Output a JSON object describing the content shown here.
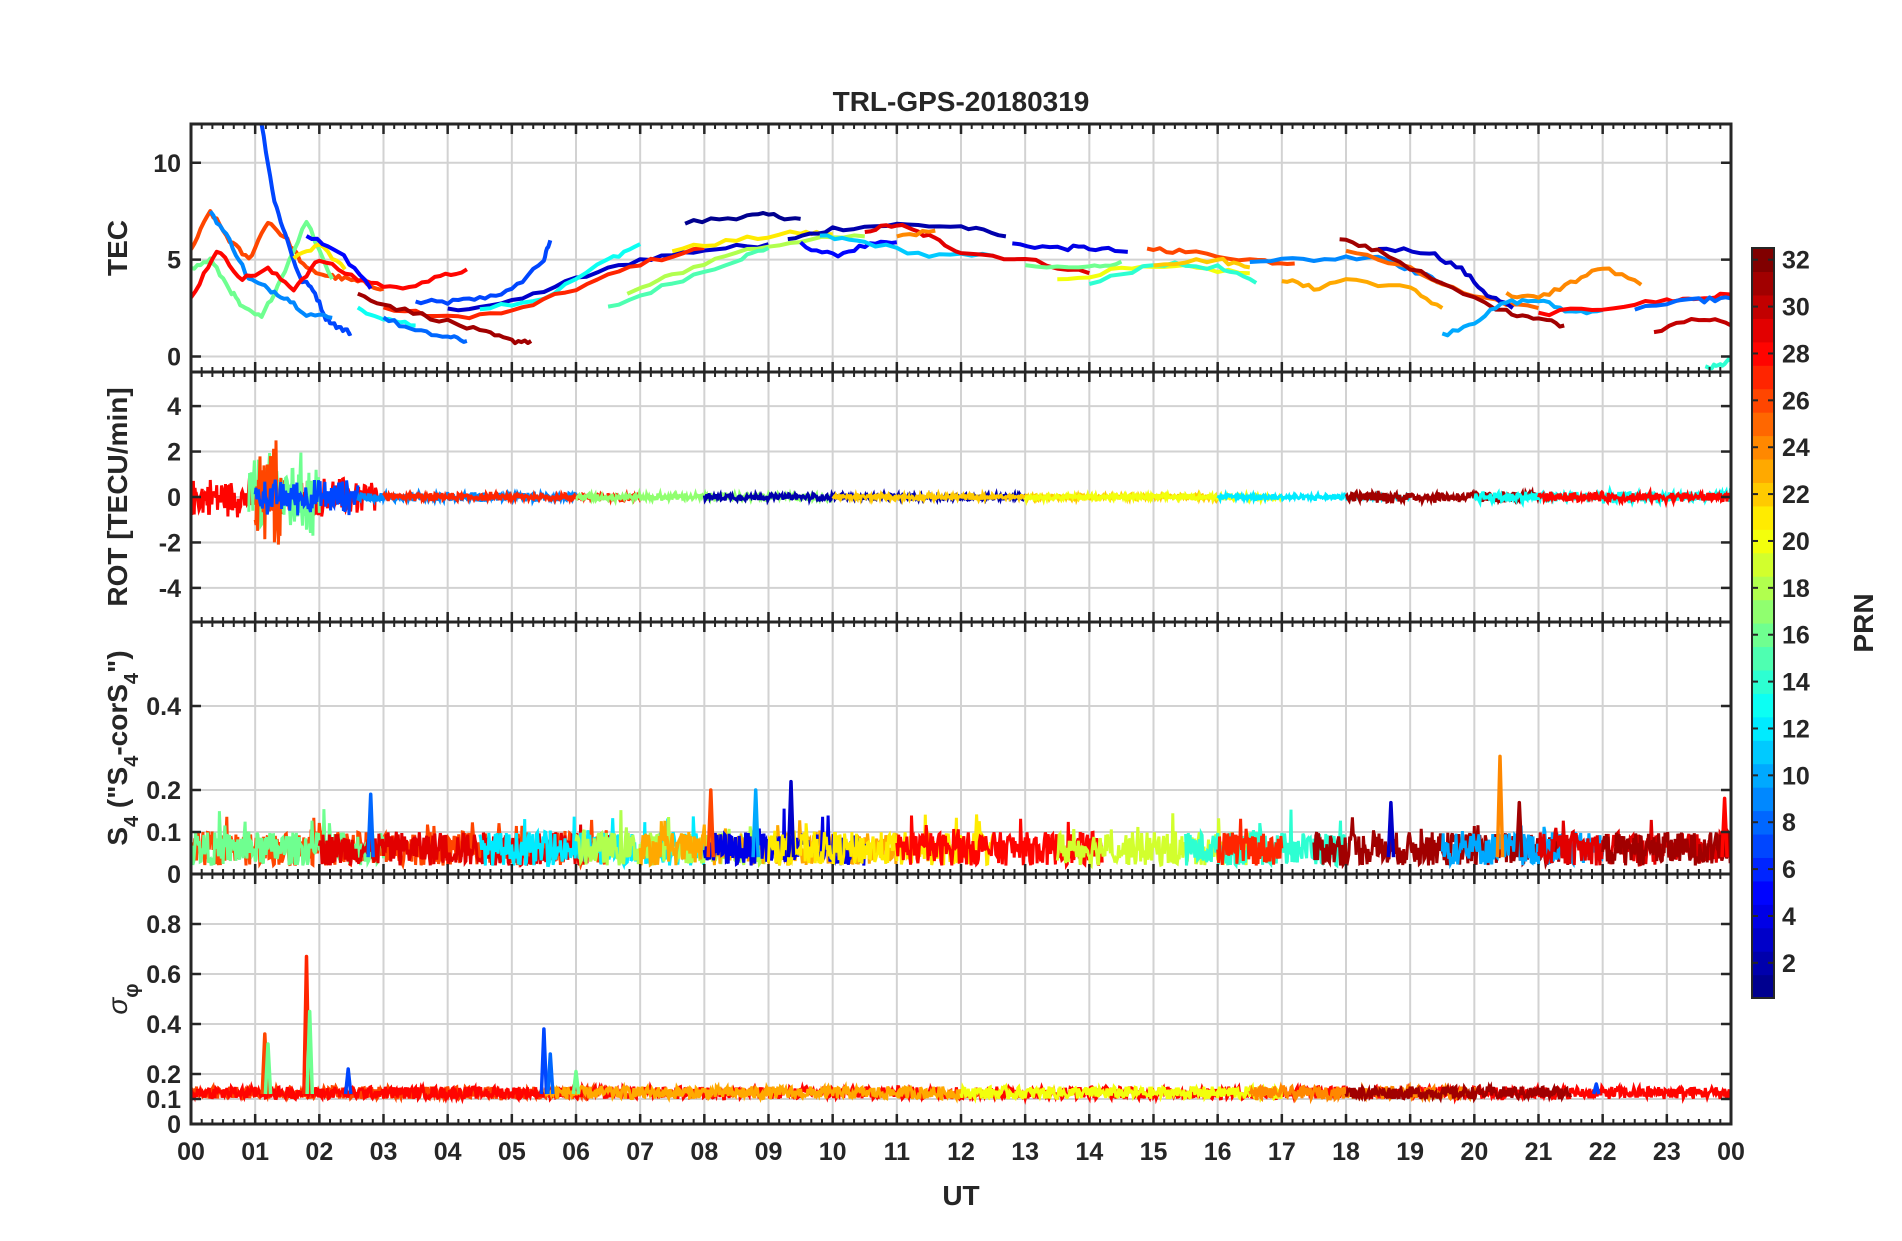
{
  "figure": {
    "title": "TRL-GPS-20180319",
    "xlabel": "UT",
    "xtick_labels": [
      "00",
      "01",
      "02",
      "03",
      "04",
      "05",
      "06",
      "07",
      "08",
      "09",
      "10",
      "11",
      "12",
      "13",
      "14",
      "15",
      "16",
      "17",
      "18",
      "19",
      "20",
      "21",
      "22",
      "23",
      "00"
    ],
    "colorbar": {
      "label": "PRN",
      "range": [
        1,
        32
      ],
      "tick_values": [
        2,
        4,
        6,
        8,
        10,
        12,
        14,
        16,
        18,
        20,
        22,
        24,
        26,
        28,
        30,
        32
      ],
      "tick_labels": [
        "2",
        "4",
        "6",
        "8",
        "10",
        "12",
        "14",
        "16",
        "18",
        "20",
        "22",
        "24",
        "26",
        "28",
        "30",
        "32"
      ],
      "colormap": "jet",
      "colors": [
        "#00008f",
        "#0000ff",
        "#0080ff",
        "#00ffff",
        "#80ff80",
        "#ffff00",
        "#ff8000",
        "#ff0000",
        "#800000"
      ]
    }
  },
  "chart_data": [
    {
      "type": "line",
      "id": "tec",
      "ylabel": "TEC",
      "ylim": [
        -0.8,
        12
      ],
      "yticks": [
        0,
        5,
        10
      ],
      "ytick_labels": [
        "0",
        "5",
        "10"
      ],
      "grid": true,
      "series": [
        {
          "prn": 7,
          "x": [
            3.5,
            4.0,
            4.5,
            5.0,
            5.5,
            5.6
          ],
          "y": [
            2.8,
            2.8,
            3.0,
            3.4,
            5.0,
            6.0
          ]
        },
        {
          "prn": 3,
          "x": [
            4.0,
            5.0,
            6.0,
            7.0,
            8.0,
            9.0
          ],
          "y": [
            2.4,
            2.8,
            4.0,
            5.0,
            5.5,
            5.8
          ]
        },
        {
          "prn": 13,
          "x": [
            4.5,
            5.5,
            6.5,
            7.0
          ],
          "y": [
            2.5,
            3.0,
            5.0,
            5.8
          ]
        },
        {
          "prn": 27,
          "x": [
            3.0,
            4.0,
            5.0,
            6.0,
            7.0,
            8.0
          ],
          "y": [
            2.5,
            2.0,
            2.3,
            3.5,
            4.8,
            5.6
          ]
        },
        {
          "prn": 1,
          "x": [
            7.7,
            8.5,
            9.0,
            9.5
          ],
          "y": [
            6.9,
            7.2,
            7.3,
            7.1
          ]
        },
        {
          "prn": 18,
          "x": [
            6.8,
            7.5,
            8.5,
            9.5,
            10.5
          ],
          "y": [
            3.2,
            4.2,
            5.4,
            6.0,
            6.2
          ]
        },
        {
          "prn": 15,
          "x": [
            6.5,
            7.5,
            8.5,
            9.0
          ],
          "y": [
            2.5,
            3.8,
            5.0,
            5.6
          ]
        },
        {
          "prn": 21,
          "x": [
            7.5,
            8.5,
            9.5,
            10.0
          ],
          "y": [
            5.5,
            6.0,
            6.4,
            6.3
          ]
        },
        {
          "prn": 2,
          "x": [
            9.3,
            10.0,
            11.0,
            12.0,
            12.7
          ],
          "y": [
            6.0,
            6.6,
            6.8,
            6.7,
            6.2
          ]
        },
        {
          "prn": 5,
          "x": [
            9.5,
            10.0,
            10.5,
            11.0
          ],
          "y": [
            5.8,
            5.2,
            5.7,
            5.9
          ]
        },
        {
          "prn": 11,
          "x": [
            9.8,
            10.5,
            11.5,
            12.5
          ],
          "y": [
            6.2,
            5.9,
            5.2,
            5.2
          ]
        },
        {
          "prn": 29,
          "x": [
            10.5,
            11.0,
            11.5,
            12.0,
            13.0,
            14.0
          ],
          "y": [
            6.5,
            6.8,
            6.2,
            5.4,
            5.0,
            4.3
          ]
        },
        {
          "prn": 24,
          "x": [
            11.0,
            11.6
          ],
          "y": [
            6.2,
            6.5
          ]
        },
        {
          "prn": 4,
          "x": [
            12.8,
            13.5,
            14.0,
            14.6
          ],
          "y": [
            5.8,
            5.6,
            5.6,
            5.4
          ]
        },
        {
          "prn": 16,
          "x": [
            13.0,
            14.0,
            14.5
          ],
          "y": [
            4.6,
            4.6,
            4.9
          ]
        },
        {
          "prn": 20,
          "x": [
            13.5,
            14.5,
            15.5,
            16.5
          ],
          "y": [
            3.9,
            4.5,
            4.6,
            4.3
          ]
        },
        {
          "prn": 14,
          "x": [
            14.0,
            15.0,
            16.0,
            16.6
          ],
          "y": [
            3.7,
            4.8,
            4.6,
            3.8
          ]
        },
        {
          "prn": 26,
          "x": [
            14.9,
            15.5,
            16.5,
            17.2
          ],
          "y": [
            5.6,
            5.4,
            5.0,
            4.8
          ]
        },
        {
          "prn": 22,
          "x": [
            15.0,
            16.0,
            16.5
          ],
          "y": [
            4.8,
            5.0,
            4.6
          ]
        },
        {
          "prn": 9,
          "x": [
            16.5,
            17.5,
            18.5,
            19.0,
            19.5
          ],
          "y": [
            5.0,
            5.0,
            5.2,
            4.5,
            3.8
          ]
        },
        {
          "prn": 23,
          "x": [
            17.0,
            17.5,
            18.0,
            19.0,
            19.5
          ],
          "y": [
            4.0,
            3.5,
            4.0,
            3.5,
            2.5
          ]
        },
        {
          "prn": 25,
          "x": [
            18.0,
            19.0,
            20.0,
            21.0
          ],
          "y": [
            5.5,
            4.5,
            3.0,
            2.5
          ]
        },
        {
          "prn": 3,
          "x": [
            18.5,
            19.3,
            19.8,
            20.2,
            20.6
          ],
          "y": [
            5.6,
            5.4,
            4.5,
            3.2,
            2.5
          ]
        },
        {
          "prn": 31,
          "x": [
            17.9,
            18.5,
            19.5,
            20.5,
            21.0,
            21.4
          ],
          "y": [
            6.0,
            5.5,
            3.7,
            2.3,
            2.0,
            1.6
          ]
        },
        {
          "prn": 10,
          "x": [
            19.5,
            20.0,
            20.5,
            21.0,
            21.5,
            22.0
          ],
          "y": [
            1.1,
            1.8,
            2.8,
            2.9,
            2.3,
            2.4
          ]
        },
        {
          "prn": 24,
          "x": [
            20.5,
            21.0,
            21.5,
            22.0,
            22.6
          ],
          "y": [
            3.2,
            3.0,
            3.8,
            4.6,
            3.7
          ]
        },
        {
          "prn": 28,
          "x": [
            21.0,
            22.0,
            23.0,
            23.5,
            24.0
          ],
          "y": [
            2.2,
            2.5,
            2.9,
            3.0,
            3.2
          ]
        },
        {
          "prn": 30,
          "x": [
            22.8,
            23.5,
            24.0
          ],
          "y": [
            1.3,
            2.0,
            1.6
          ]
        },
        {
          "prn": 8,
          "x": [
            22.5,
            23.5,
            24.0
          ],
          "y": [
            2.5,
            2.9,
            3.0
          ]
        },
        {
          "prn": 14,
          "x": [
            23.6,
            23.8,
            24.0
          ],
          "y": [
            -0.6,
            -0.5,
            -0.2
          ]
        },
        {
          "prn": 26,
          "x": [
            0.0,
            0.3,
            0.6,
            0.9,
            1.2,
            1.5,
            1.8,
            2.1,
            2.4,
            2.7,
            3.0
          ],
          "y": [
            5.5,
            7.5,
            6.0,
            5.0,
            7.0,
            6.0,
            4.5,
            4.2,
            4.0,
            3.8,
            3.5
          ]
        },
        {
          "prn": 16,
          "x": [
            0.0,
            0.3,
            0.6,
            0.8,
            1.1,
            1.4,
            1.8,
            2.2
          ],
          "y": [
            4.5,
            5.0,
            3.5,
            2.5,
            2.0,
            4.0,
            7.0,
            4.0
          ]
        },
        {
          "prn": 7,
          "x": [
            1.1,
            1.3,
            1.5,
            1.7,
            1.9,
            2.1,
            2.3,
            2.5
          ],
          "y": [
            12.0,
            8.0,
            6.0,
            4.0,
            3.5,
            2.0,
            1.5,
            1.2
          ]
        },
        {
          "prn": 9,
          "x": [
            0.3,
            0.6,
            0.9,
            1.2,
            1.5,
            1.8,
            2.2
          ],
          "y": [
            7.5,
            6.0,
            4.0,
            3.5,
            3.0,
            2.2,
            2.0
          ]
        },
        {
          "prn": 28,
          "x": [
            0.0,
            0.4,
            0.8,
            1.2,
            1.6,
            2.0,
            2.6,
            3.2,
            3.8,
            4.3
          ],
          "y": [
            3.0,
            5.5,
            4.0,
            4.5,
            3.5,
            5.0,
            4.0,
            3.5,
            4.0,
            4.5
          ]
        },
        {
          "prn": 21,
          "x": [
            1.6,
            2.0,
            2.4
          ],
          "y": [
            5.0,
            5.8,
            4.5
          ]
        },
        {
          "prn": 5,
          "x": [
            1.8,
            2.3,
            2.8
          ],
          "y": [
            6.2,
            5.5,
            3.5
          ]
        },
        {
          "prn": 13,
          "x": [
            2.6,
            3.0,
            3.5
          ],
          "y": [
            2.5,
            2.0,
            1.6
          ]
        },
        {
          "prn": 31,
          "x": [
            2.6,
            3.2,
            4.0,
            4.6,
            5.0,
            5.3
          ],
          "y": [
            3.2,
            2.5,
            1.8,
            1.2,
            0.8,
            0.8
          ]
        },
        {
          "prn": 8,
          "x": [
            3.0,
            3.5,
            4.0,
            4.3
          ],
          "y": [
            2.0,
            1.3,
            1.0,
            0.8
          ]
        }
      ]
    },
    {
      "type": "line",
      "id": "rot",
      "ylabel": "ROT [TECU/min]",
      "ylim": [
        -5.5,
        5.5
      ],
      "yticks": [
        -4,
        -2,
        0,
        2,
        4
      ],
      "ytick_labels": [
        "-4",
        "-2",
        "0",
        "2",
        "4"
      ],
      "grid": true,
      "segments": [
        {
          "prn": 28,
          "x": [
            0.0,
            2.9
          ],
          "amp": 1.0
        },
        {
          "prn": 16,
          "x": [
            0.9,
            2.0
          ],
          "amp": 2.2
        },
        {
          "prn": 26,
          "x": [
            1.0,
            1.4
          ],
          "amp": 2.8
        },
        {
          "prn": 7,
          "x": [
            1.0,
            2.6
          ],
          "amp": 0.9
        },
        {
          "prn": 9,
          "x": [
            2.6,
            6.0
          ],
          "amp": 0.25
        },
        {
          "prn": 27,
          "x": [
            3.0,
            7.0
          ],
          "amp": 0.2
        },
        {
          "prn": 17,
          "x": [
            6.0,
            10.0
          ],
          "amp": 0.2
        },
        {
          "prn": 2,
          "x": [
            8.0,
            13.0
          ],
          "amp": 0.18
        },
        {
          "prn": 22,
          "x": [
            10.0,
            16.0
          ],
          "amp": 0.15
        },
        {
          "prn": 20,
          "x": [
            13.0,
            17.0
          ],
          "amp": 0.15
        },
        {
          "prn": 12,
          "x": [
            16.0,
            19.0
          ],
          "amp": 0.15
        },
        {
          "prn": 31,
          "x": [
            18.0,
            21.0
          ],
          "amp": 0.3
        },
        {
          "prn": 13,
          "x": [
            20.0,
            24.0
          ],
          "amp": 0.3
        },
        {
          "prn": 28,
          "x": [
            21.0,
            24.0
          ],
          "amp": 0.25
        }
      ]
    },
    {
      "type": "line",
      "id": "s4",
      "ylabel": "S_4 (\"S_4-corS_4\")",
      "ylim": [
        0,
        0.6
      ],
      "yticks": [
        0,
        0.1,
        0.2,
        0.4
      ],
      "ytick_labels": [
        "0",
        "0.1",
        "0.2",
        "0.4"
      ],
      "grid": true,
      "baseline": [
        0.02,
        0.1
      ],
      "segments": [
        {
          "prn": 26,
          "x": [
            0.0,
            6.5
          ]
        },
        {
          "prn": 16,
          "x": [
            0.0,
            3.0
          ]
        },
        {
          "prn": 29,
          "x": [
            2.0,
            6.5
          ]
        },
        {
          "prn": 12,
          "x": [
            4.5,
            8.0
          ]
        },
        {
          "prn": 18,
          "x": [
            6.0,
            9.0
          ]
        },
        {
          "prn": 23,
          "x": [
            7.0,
            11.0
          ]
        },
        {
          "prn": 4,
          "x": [
            8.0,
            10.5
          ]
        },
        {
          "prn": 21,
          "x": [
            9.0,
            12.5
          ]
        },
        {
          "prn": 28,
          "x": [
            11.0,
            14.2
          ]
        },
        {
          "prn": 19,
          "x": [
            13.5,
            16.5
          ]
        },
        {
          "prn": 14,
          "x": [
            15.5,
            18.0
          ]
        },
        {
          "prn": 27,
          "x": [
            16.0,
            17.0
          ]
        },
        {
          "prn": 31,
          "x": [
            17.5,
            21.5
          ]
        },
        {
          "prn": 10,
          "x": [
            19.5,
            22.0
          ]
        },
        {
          "prn": 29,
          "x": [
            21.0,
            24.0
          ]
        },
        {
          "prn": 31,
          "x": [
            22.0,
            24.0
          ]
        }
      ],
      "spikes": [
        {
          "x": 2.8,
          "y": 0.19,
          "prn": 8
        },
        {
          "x": 8.1,
          "y": 0.2,
          "prn": 26
        },
        {
          "x": 8.8,
          "y": 0.2,
          "prn": 10
        },
        {
          "x": 9.35,
          "y": 0.22,
          "prn": 3
        },
        {
          "x": 18.7,
          "y": 0.17,
          "prn": 3
        },
        {
          "x": 20.4,
          "y": 0.28,
          "prn": 24
        },
        {
          "x": 20.7,
          "y": 0.17,
          "prn": 31
        },
        {
          "x": 23.9,
          "y": 0.18,
          "prn": 28
        }
      ]
    },
    {
      "type": "line",
      "id": "sigma",
      "ylabel": "σ_φ",
      "ylim": [
        0,
        1.0
      ],
      "yticks": [
        0,
        0.1,
        0.2,
        0.4,
        0.6,
        0.8
      ],
      "ytick_labels": [
        "0",
        "0.1",
        "0.2",
        "0.4",
        "0.6",
        "0.8"
      ],
      "grid": true,
      "baseline": [
        0.1,
        0.15
      ],
      "segments": [
        {
          "prn": 26,
          "x": [
            0.0,
            6.5
          ]
        },
        {
          "prn": 28,
          "x": [
            0.0,
            24.0
          ]
        },
        {
          "prn": 23,
          "x": [
            5.5,
            12.0
          ]
        },
        {
          "prn": 20,
          "x": [
            12.0,
            17.0
          ]
        },
        {
          "prn": 24,
          "x": [
            16.5,
            20.0
          ]
        },
        {
          "prn": 31,
          "x": [
            18.0,
            21.5
          ]
        }
      ],
      "spikes": [
        {
          "x": 1.15,
          "y": 0.36,
          "prn": 26
        },
        {
          "x": 1.2,
          "y": 0.32,
          "prn": 16
        },
        {
          "x": 1.8,
          "y": 0.67,
          "prn": 27
        },
        {
          "x": 1.85,
          "y": 0.45,
          "prn": 16
        },
        {
          "x": 2.45,
          "y": 0.22,
          "prn": 7
        },
        {
          "x": 5.5,
          "y": 0.38,
          "prn": 7
        },
        {
          "x": 5.6,
          "y": 0.28,
          "prn": 8
        },
        {
          "x": 6.0,
          "y": 0.21,
          "prn": 16
        },
        {
          "x": 21.9,
          "y": 0.16,
          "prn": 7
        }
      ]
    }
  ]
}
